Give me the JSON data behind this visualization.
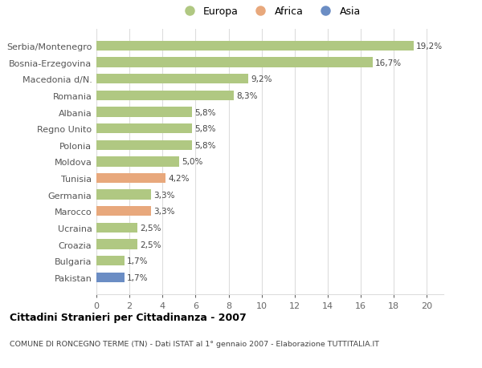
{
  "categories": [
    "Pakistan",
    "Bulgaria",
    "Croazia",
    "Ucraina",
    "Marocco",
    "Germania",
    "Tunisia",
    "Moldova",
    "Polonia",
    "Regno Unito",
    "Albania",
    "Romania",
    "Macedonia d/N.",
    "Bosnia-Erzegovina",
    "Serbia/Montenegro"
  ],
  "values": [
    1.7,
    1.7,
    2.5,
    2.5,
    3.3,
    3.3,
    4.2,
    5.0,
    5.8,
    5.8,
    5.8,
    8.3,
    9.2,
    16.7,
    19.2
  ],
  "colors": [
    "#6b8dc4",
    "#b0c882",
    "#b0c882",
    "#b0c882",
    "#e8a87c",
    "#b0c882",
    "#e8a87c",
    "#b0c882",
    "#b0c882",
    "#b0c882",
    "#b0c882",
    "#b0c882",
    "#b0c882",
    "#b0c882",
    "#b0c882"
  ],
  "labels": [
    "1,7%",
    "1,7%",
    "2,5%",
    "2,5%",
    "3,3%",
    "3,3%",
    "4,2%",
    "5,0%",
    "5,8%",
    "5,8%",
    "5,8%",
    "8,3%",
    "9,2%",
    "16,7%",
    "19,2%"
  ],
  "title": "Cittadini Stranieri per Cittadinanza - 2007",
  "subtitle": "COMUNE DI RONCEGNO TERME (TN) - Dati ISTAT al 1° gennaio 2007 - Elaborazione TUTTITALIA.IT",
  "xlim": [
    0,
    21
  ],
  "xticks": [
    0,
    2,
    4,
    6,
    8,
    10,
    12,
    14,
    16,
    18,
    20
  ],
  "legend_labels": [
    "Europa",
    "Africa",
    "Asia"
  ],
  "legend_colors": [
    "#b0c882",
    "#e8a87c",
    "#6b8dc4"
  ],
  "bar_height": 0.6,
  "background_color": "#ffffff",
  "grid_color": "#dddddd"
}
